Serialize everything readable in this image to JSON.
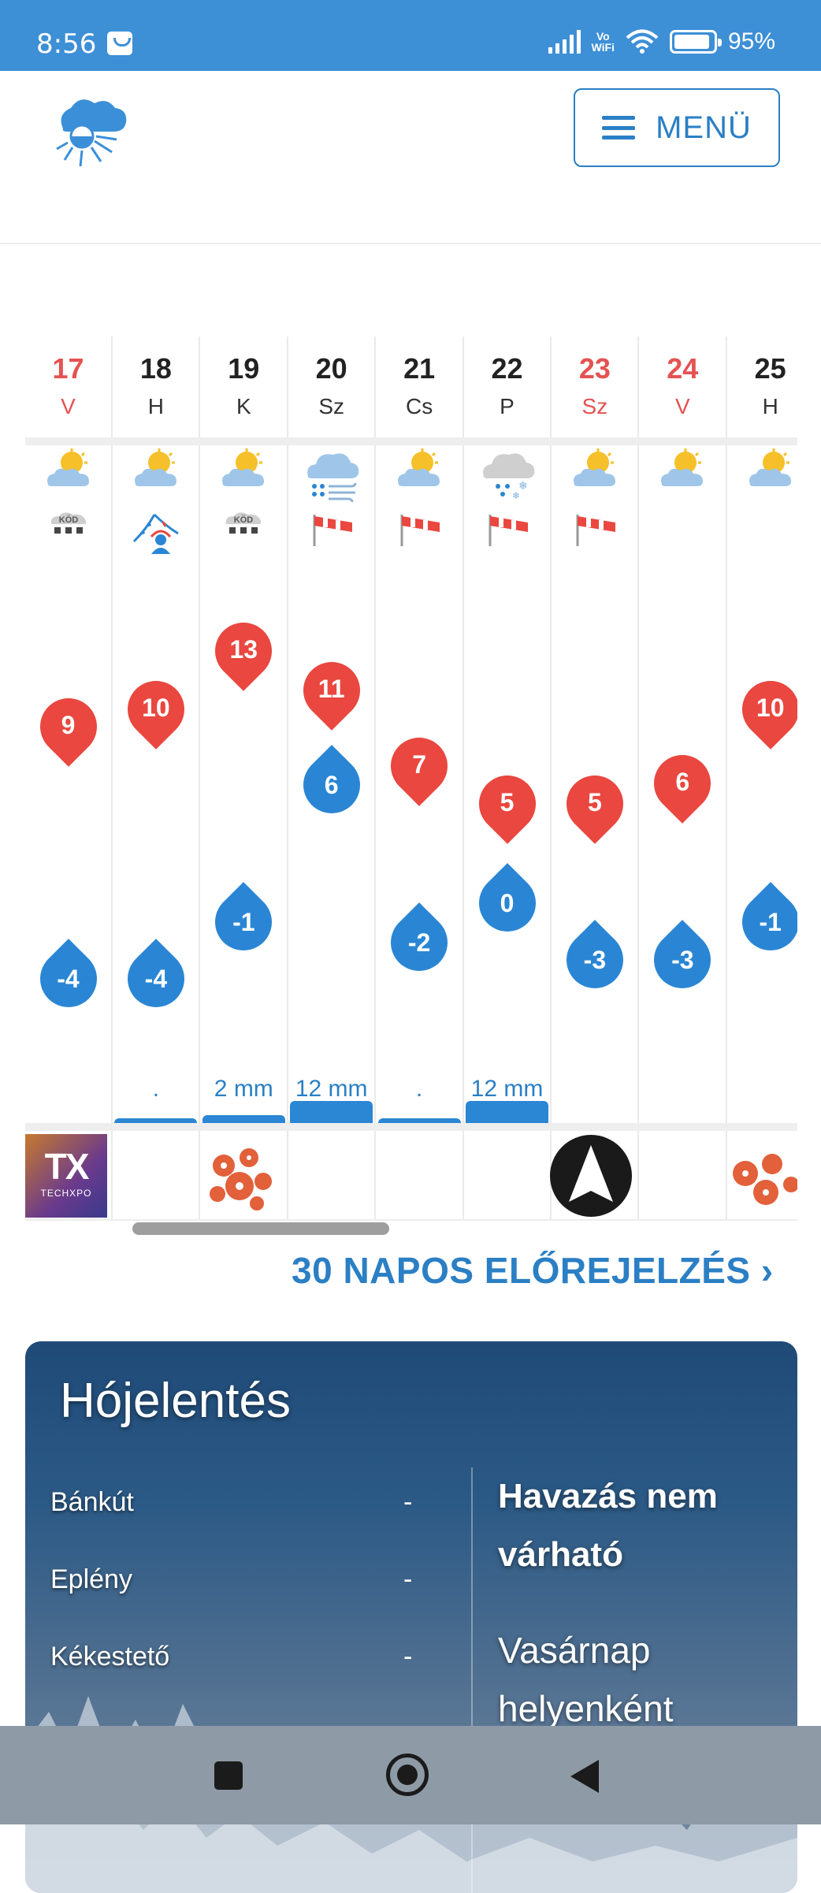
{
  "status_bar": {
    "time": "8:56",
    "network_label": "Vo\nWiFi",
    "battery": "95%",
    "icons": [
      "notification-icon",
      "signal-icon",
      "vowifi-icon",
      "wifi-icon",
      "battery-icon"
    ]
  },
  "header": {
    "logo": "sun-cloud-logo",
    "menu_label": "MENÜ"
  },
  "colors": {
    "accent": "#2b7fc4",
    "max_temp": "#e9473f",
    "min_temp": "#2a86d4",
    "weekend": "#e55252"
  },
  "forecast": {
    "days": [
      {
        "num": "17",
        "name": "V",
        "weekend": true,
        "icons": [
          "sun-cloud-icon",
          "fog-icon"
        ],
        "max": "9",
        "min": "-4",
        "precip": "",
        "bar": 0
      },
      {
        "num": "18",
        "name": "H",
        "weekend": false,
        "icons": [
          "sun-cloud-icon",
          "weather-front-icon"
        ],
        "max": "10",
        "min": "-4",
        "precip": ".",
        "bar": 6
      },
      {
        "num": "19",
        "name": "K",
        "weekend": false,
        "icons": [
          "sun-cloud-icon",
          "fog-icon"
        ],
        "max": "13",
        "min": "-1",
        "precip": "2 mm",
        "bar": 10
      },
      {
        "num": "20",
        "name": "Sz",
        "weekend": false,
        "icons": [
          "rain-wind-icon",
          "windsock-icon"
        ],
        "max": "11",
        "min": "6",
        "precip": "12 mm",
        "bar": 28
      },
      {
        "num": "21",
        "name": "Cs",
        "weekend": false,
        "icons": [
          "sun-cloud-icon",
          "windsock-icon"
        ],
        "max": "7",
        "min": "-2",
        "precip": ".",
        "bar": 6
      },
      {
        "num": "22",
        "name": "P",
        "weekend": false,
        "icons": [
          "snow-rain-icon",
          "windsock-icon"
        ],
        "max": "5",
        "min": "0",
        "precip": "12 mm",
        "bar": 28
      },
      {
        "num": "23",
        "name": "Sz",
        "weekend": true,
        "icons": [
          "sun-cloud-icon",
          "windsock-icon"
        ],
        "max": "5",
        "min": "-3",
        "precip": "",
        "bar": 0
      },
      {
        "num": "24",
        "name": "V",
        "weekend": true,
        "icons": [
          "sun-cloud-icon"
        ],
        "max": "6",
        "min": "-3",
        "precip": "",
        "bar": 0
      },
      {
        "num": "25",
        "name": "H",
        "weekend": false,
        "icons": [
          "sun-cloud-icon"
        ],
        "max": "10",
        "min": "-1",
        "precip": "",
        "bar": 0
      }
    ],
    "ad_logo_text": "TX",
    "ad_logo_sub": "TECHXPO"
  },
  "thirty_day_link": "30 NAPOS ELŐREJELZÉS",
  "snow_report": {
    "title": "Hójelentés",
    "locations": [
      {
        "name": "Bánkút",
        "value": "-"
      },
      {
        "name": "Eplény",
        "value": "-"
      },
      {
        "name": "Kékestető",
        "value": "-"
      }
    ],
    "headline": "Havazás nem várható",
    "text": "Vasárnap helyenként"
  }
}
